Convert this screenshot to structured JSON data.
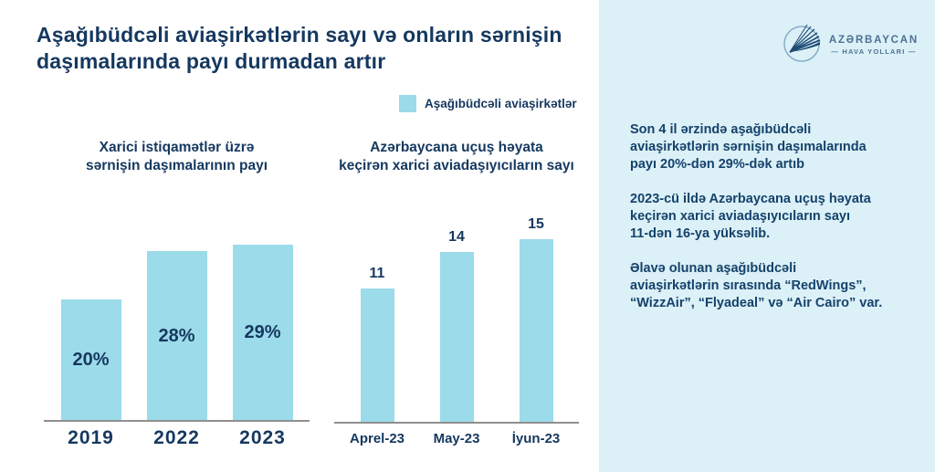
{
  "page": {
    "title": "Aşağıbüdcəli aviaşirkətlərin sayı və onların sərnişin\ndaşımalarında payı durmadan artır"
  },
  "legend": {
    "label": "Aşağıbüdcəli aviaşirkətlər",
    "swatch_color": "#9bdbea"
  },
  "colors": {
    "bar_fill": "#9bdbea",
    "navy_text": "#15385f",
    "sidebar_background": "#dcf0f7",
    "axis_line": "#8f8f8f",
    "logo_blue": "#4b7194"
  },
  "chart_data": [
    {
      "type": "bar",
      "title": "Xarici istiqamətlər üzrə\nsərnişin daşımalarının payı",
      "categories": [
        "2019",
        "2022",
        "2023"
      ],
      "values": [
        20,
        28,
        29
      ],
      "value_labels": [
        "20%",
        "28%",
        "29%"
      ],
      "value_label_position": "inside-center",
      "series_name": "Aşağıbüdcəli aviaşirkətlər",
      "ylim": [
        0,
        30
      ],
      "grid": false,
      "unit": "%"
    },
    {
      "type": "bar",
      "title": "Azərbaycana uçuş həyata\nkeçirən xarici aviadaşıyıcıların sayı",
      "categories": [
        "Aprel-23",
        "May-23",
        "İyun-23"
      ],
      "values": [
        11,
        14,
        15
      ],
      "value_labels": [
        "11",
        "14",
        "15"
      ],
      "value_label_position": "above",
      "series_name": "Aşağıbüdcəli aviaşirkətlər",
      "ylim": [
        0,
        16.5
      ],
      "grid": false,
      "unit": "count"
    }
  ],
  "sidebar": {
    "logo": {
      "icon": "azal-wing-icon",
      "brand_line1": "AZƏRBAYCAN",
      "brand_line2": "— HAVA YOLLARI —"
    },
    "paragraphs": [
      "Son 4 il ərzində aşağıbüdcəli\naviaşirkətlərin sərnişin daşımalarında\npayı 20%-dən 29%-dək artıb",
      "2023-cü ildə Azərbaycana uçuş həyata\nkeçirən xarici aviadaşıyıcıların sayı\n11-dən 16-ya yüksəlib.",
      "Əlavə olunan aşağıbüdcəli\naviaşirkətlərin sırasında “RedWings”,\n“WizzAir”, “Flyadeal” və “Air Cairo” var."
    ]
  }
}
